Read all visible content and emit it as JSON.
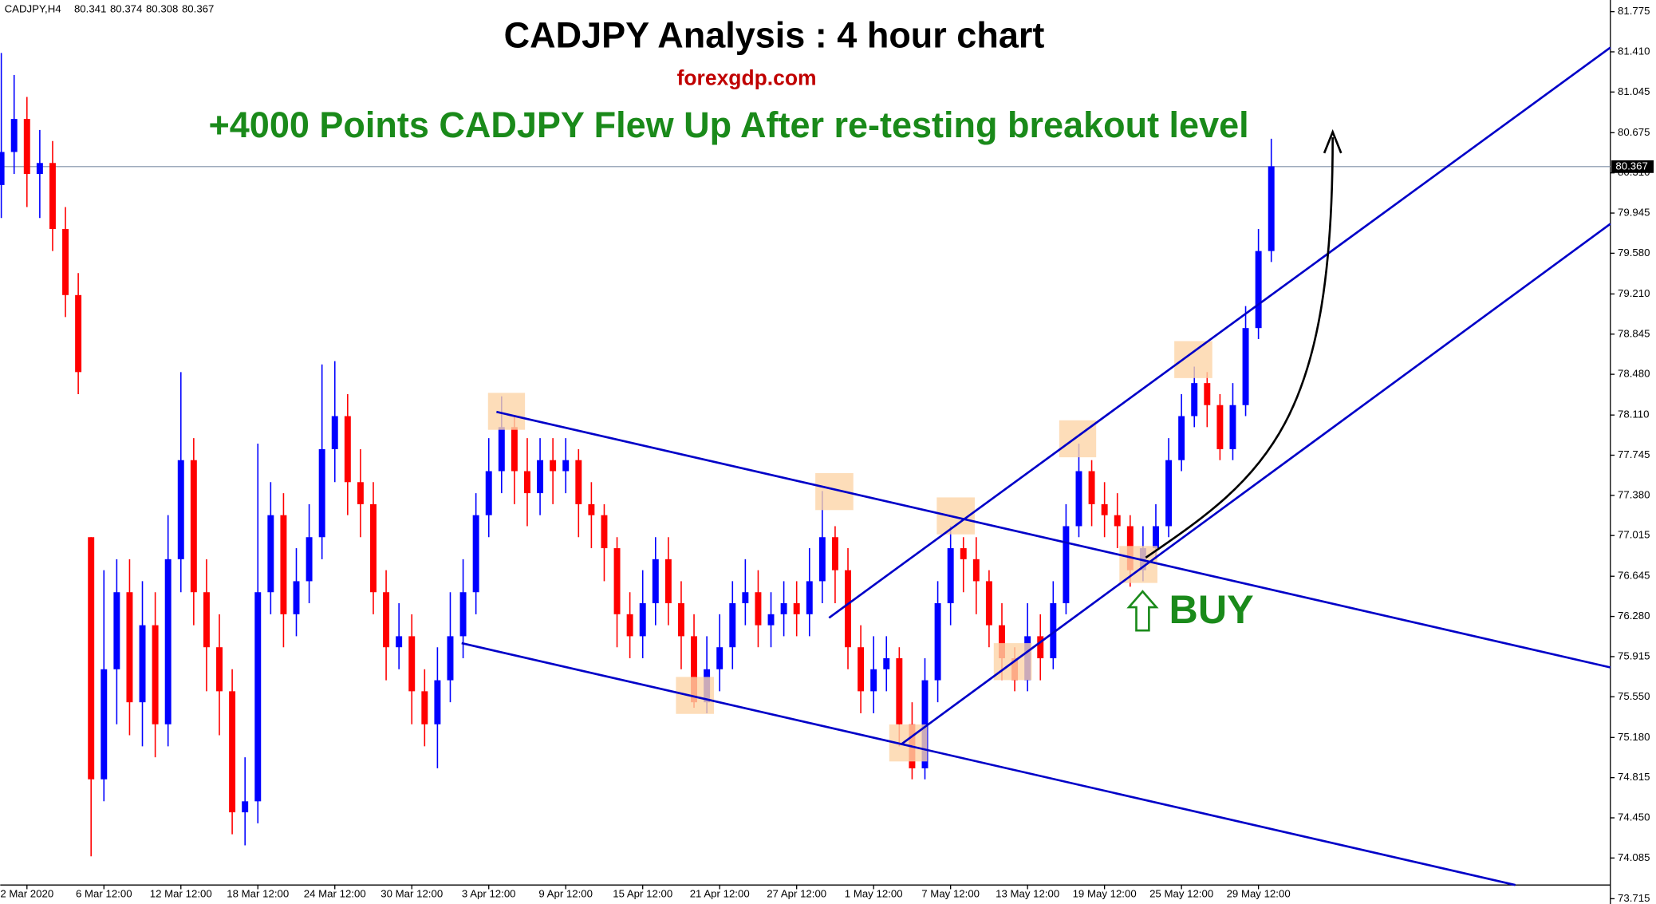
{
  "chart_data": {
    "type": "candlestick",
    "title": "CADJPY Analysis : 4 hour chart",
    "subtitle": "forexgdp.com",
    "headline": "+4000 Points CADJPY Flew Up After re-testing breakout level",
    "signal": "BUY",
    "symbol": "CADJPY,H4",
    "ohlc": [
      80.341,
      80.374,
      80.308,
      80.367
    ],
    "current_price": 80.367,
    "up_color": "#0000ff",
    "down_color": "#ff0000",
    "categories": [
      null,
      null,
      "2 Mar 2020",
      null,
      null,
      null,
      null,
      null,
      "6 Mar 12:00",
      null,
      null,
      null,
      null,
      null,
      "12 Mar 12:00",
      null,
      null,
      null,
      null,
      null,
      "18 Mar 12:00",
      null,
      null,
      null,
      null,
      null,
      "24 Mar 12:00",
      null,
      null,
      null,
      null,
      null,
      "30 Mar 12:00",
      null,
      null,
      null,
      null,
      null,
      "3 Apr 12:00",
      null,
      null,
      null,
      null,
      null,
      "9 Apr 12:00",
      null,
      null,
      null,
      null,
      null,
      "15 Apr 12:00",
      null,
      null,
      null,
      null,
      null,
      "21 Apr 12:00",
      null,
      null,
      null,
      null,
      null,
      "27 Apr 12:00",
      null,
      null,
      null,
      null,
      null,
      "1 May 12:00",
      null,
      null,
      null,
      null,
      null,
      "7 May 12:00",
      null,
      null,
      null,
      null,
      null,
      "13 May 12:00",
      null,
      null,
      null,
      null,
      null,
      "19 May 12:00",
      null,
      null,
      null,
      null,
      null,
      "25 May 12:00",
      null,
      null,
      null,
      null,
      null,
      "29 May 12:00",
      null
    ],
    "open": [
      80.2,
      80.5,
      80.8,
      80.3,
      80.4,
      79.8,
      79.2,
      77.0,
      74.8,
      75.8,
      76.5,
      75.5,
      76.2,
      75.3,
      76.8,
      77.7,
      76.5,
      76.0,
      75.6,
      74.5,
      74.6,
      76.5,
      77.2,
      76.3,
      76.6,
      77.0,
      77.8,
      78.1,
      77.5,
      77.3,
      76.5,
      76.0,
      76.1,
      75.6,
      75.3,
      75.7,
      76.1,
      76.5,
      77.2,
      77.6,
      78.0,
      77.6,
      77.4,
      77.7,
      77.6,
      77.7,
      77.3,
      77.2,
      76.9,
      76.3,
      76.1,
      76.4,
      76.8,
      76.4,
      76.1,
      75.5,
      75.8,
      76.0,
      76.4,
      76.5,
      76.2,
      76.3,
      76.4,
      76.3,
      76.6,
      77.0,
      76.7,
      76.0,
      75.6,
      75.8,
      75.9,
      75.3,
      74.9,
      75.7,
      76.4,
      76.9,
      76.8,
      76.6,
      76.2,
      75.9,
      75.7,
      76.1,
      75.9,
      76.4,
      77.1,
      77.6,
      77.3,
      77.2,
      77.1,
      76.7,
      76.9,
      77.1,
      77.7,
      78.1,
      78.4,
      78.2,
      77.8,
      78.2,
      78.9,
      79.6
    ],
    "high": [
      81.4,
      81.2,
      81.0,
      80.7,
      80.6,
      80.0,
      79.4,
      77.0,
      76.7,
      76.8,
      76.8,
      76.6,
      76.5,
      77.2,
      78.5,
      77.9,
      76.8,
      76.3,
      75.8,
      75.0,
      77.85,
      77.5,
      77.4,
      76.9,
      77.3,
      78.57,
      78.6,
      78.3,
      77.8,
      77.5,
      76.7,
      76.4,
      76.3,
      75.8,
      76.0,
      76.5,
      76.8,
      77.4,
      77.9,
      78.28,
      78.1,
      77.9,
      77.9,
      77.9,
      77.9,
      77.8,
      77.5,
      77.3,
      77.0,
      76.5,
      76.7,
      77.0,
      77.0,
      76.6,
      76.3,
      76.1,
      76.3,
      76.6,
      76.8,
      76.7,
      76.5,
      76.6,
      76.6,
      76.9,
      77.42,
      77.1,
      76.9,
      76.2,
      76.1,
      76.1,
      76.0,
      75.5,
      75.9,
      76.6,
      77.1,
      77.0,
      77.0,
      76.7,
      76.4,
      76.0,
      76.4,
      76.3,
      76.6,
      77.3,
      77.85,
      77.7,
      77.5,
      77.4,
      77.2,
      77.1,
      77.3,
      77.9,
      78.3,
      78.55,
      78.5,
      78.3,
      78.4,
      79.1,
      79.8,
      80.62
    ],
    "low": [
      79.9,
      80.3,
      80.0,
      79.9,
      79.6,
      79.0,
      78.3,
      74.1,
      74.6,
      75.3,
      75.2,
      75.1,
      75.0,
      75.1,
      76.5,
      76.2,
      75.6,
      75.2,
      74.3,
      74.2,
      74.4,
      76.3,
      76.0,
      76.1,
      76.4,
      76.8,
      77.5,
      77.2,
      77.0,
      76.3,
      75.7,
      75.8,
      75.3,
      75.1,
      74.9,
      75.5,
      75.9,
      76.3,
      77.0,
      77.4,
      77.3,
      77.1,
      77.2,
      77.3,
      77.4,
      77.0,
      76.9,
      76.6,
      76.0,
      75.9,
      75.9,
      76.2,
      76.2,
      75.8,
      75.45,
      75.4,
      75.6,
      75.8,
      76.2,
      76.0,
      76.0,
      76.1,
      76.1,
      76.1,
      76.4,
      76.4,
      75.8,
      75.4,
      75.4,
      75.6,
      75.1,
      74.8,
      74.8,
      75.5,
      76.2,
      76.5,
      76.3,
      76.0,
      75.7,
      75.6,
      75.6,
      75.7,
      75.8,
      76.3,
      77.0,
      77.1,
      77.0,
      76.9,
      76.55,
      76.6,
      76.8,
      77.0,
      77.6,
      78.0,
      78.0,
      77.7,
      77.7,
      78.1,
      78.8,
      79.5
    ],
    "close": [
      80.5,
      80.8,
      80.3,
      80.4,
      79.8,
      79.2,
      78.5,
      74.8,
      75.8,
      76.5,
      75.5,
      76.2,
      75.3,
      76.8,
      77.7,
      76.5,
      76.0,
      75.6,
      74.5,
      74.6,
      76.5,
      77.2,
      76.3,
      76.6,
      77.0,
      77.8,
      78.1,
      77.5,
      77.3,
      76.5,
      76.0,
      76.1,
      75.6,
      75.3,
      75.7,
      76.1,
      76.5,
      77.2,
      77.6,
      78.0,
      77.6,
      77.4,
      77.7,
      77.6,
      77.7,
      77.3,
      77.2,
      76.9,
      76.3,
      76.1,
      76.4,
      76.8,
      76.4,
      76.1,
      75.5,
      75.8,
      76.0,
      76.4,
      76.5,
      76.2,
      76.3,
      76.4,
      76.3,
      76.6,
      77.0,
      76.7,
      76.0,
      75.6,
      75.8,
      75.9,
      75.3,
      74.9,
      75.7,
      76.4,
      76.9,
      76.8,
      76.6,
      76.2,
      75.9,
      75.7,
      76.1,
      75.9,
      76.4,
      77.1,
      77.6,
      77.3,
      77.2,
      77.1,
      76.7,
      76.9,
      77.1,
      77.7,
      78.1,
      78.4,
      78.2,
      77.8,
      78.2,
      78.9,
      79.6,
      80.37
    ],
    "ylim": [
      73.667,
      81.881
    ],
    "yticks": [
      81.775,
      {
        "value": 81.41,
        "label": "81.410"
      },
      81.045,
      80.675,
      {
        "value": 80.31,
        "label": "80.310"
      },
      79.945,
      {
        "value": 79.58,
        "label": "79.580"
      },
      {
        "value": 79.21,
        "label": "79.210"
      },
      78.845,
      {
        "value": 78.48,
        "label": "78.480"
      },
      {
        "value": 78.11,
        "label": "78.110"
      },
      77.745,
      {
        "value": 77.38,
        "label": "77.380"
      },
      77.015,
      76.645,
      {
        "value": 76.28,
        "label": "76.280"
      },
      75.915,
      {
        "value": 75.55,
        "label": "75.550"
      },
      {
        "value": 75.18,
        "label": "75.180"
      },
      74.815,
      {
        "value": 74.45,
        "label": "74.450"
      },
      74.085,
      73.715
    ]
  }
}
